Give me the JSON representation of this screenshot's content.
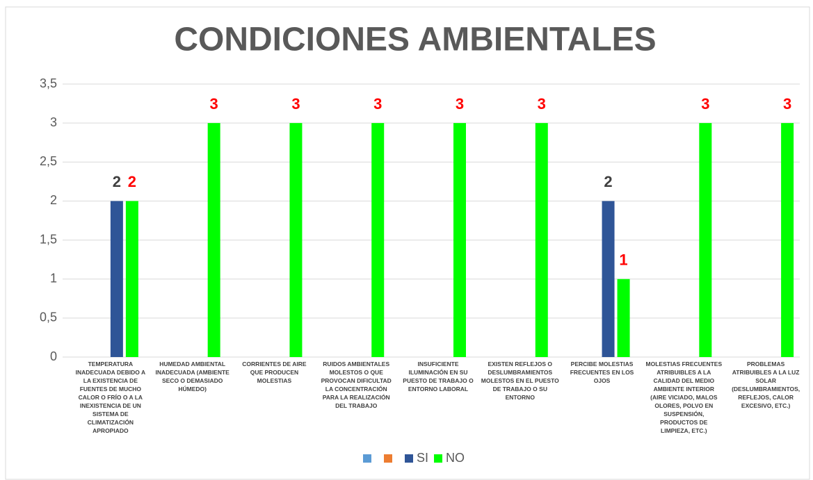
{
  "chart_data": {
    "type": "bar",
    "title": "CONDICIONES AMBIENTALES",
    "categories": [
      "TEMPERATURA INADECUADA DEBIDO A LA EXISTENCIA DE FUENTES DE MUCHO CALOR O FRÍO O A LA INEXISTENCIA DE UN SISTEMA DE CLIMATIZACIÓN APROPIADO",
      "HUMEDAD AMBIENTAL INADECUADA (AMBIENTE SECO O DEMASIADO HÚMEDO)",
      "CORRIENTES DE AIRE QUE PRODUCEN MOLESTIAS",
      "RUIDOS AMBIENTALES MOLESTOS O QUE PROVOCAN DIFICULTAD LA CONCENTRACIÓN PARA LA REALIZACIÓN DEL TRABAJO",
      "INSUFICIENTE ILUMINACIÓN EN SU PUESTO DE TRABAJO O ENTORNO LABORAL",
      "EXISTEN REFLEJOS O DESLUMBRAMIENTOS MOLESTOS EN EL PUESTO DE TRABAJO O SU ENTORNO",
      "PERCIBE MOLESTIAS FRECUENTES EN LOS OJOS",
      "MOLESTIAS FRECUENTES ATRIBUIBLES A LA CALIDAD DEL MEDIO AMBIENTE INTERIOR (AIRE VICIADO, MALOS OLORES, POLVO EN SUSPENSIÓN, PRODUCTOS DE LIMPIEZA, ETC.)",
      "PROBLEMAS ATRIBUIBLES A LA LUZ SOLAR (DESLUMBRAMIENTOS, REFLEJOS, CALOR EXCESIVO, ETC.)"
    ],
    "series": [
      {
        "name": null,
        "color": "#5b9bd5",
        "values": [
          null,
          null,
          null,
          null,
          null,
          null,
          null,
          null,
          null
        ]
      },
      {
        "name": null,
        "color": "#ed7d31",
        "values": [
          null,
          null,
          null,
          null,
          null,
          null,
          null,
          null,
          null
        ]
      },
      {
        "name": "SI",
        "color": "#2f5597",
        "label_color": "#404040",
        "values": [
          2,
          null,
          null,
          null,
          null,
          null,
          2,
          null,
          null
        ]
      },
      {
        "name": "NO",
        "color": "#00ff00",
        "label_color": "#ff0000",
        "values": [
          2,
          3,
          3,
          3,
          3,
          3,
          1,
          3,
          3
        ]
      }
    ],
    "ylim": [
      0,
      3.5
    ],
    "yticks": [
      0,
      {
        "value": 0.5,
        "label": "0,5"
      },
      1,
      {
        "value": 1.5,
        "label": "1,5"
      },
      2,
      {
        "value": 2.5,
        "label": "2,5"
      },
      3,
      {
        "value": 3.5,
        "label": "3,5"
      }
    ],
    "grid": true,
    "legend": "bottom"
  }
}
